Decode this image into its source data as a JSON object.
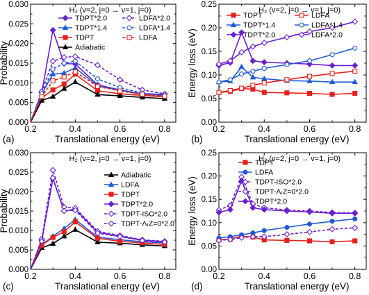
{
  "chart_data": [
    {
      "type": "line",
      "panel_label": "(a)",
      "title": "H₂ (v=2, j=0 → v=1, j=0)",
      "xlabel": "Translational energy (eV)",
      "ylabel": "Probability",
      "xlim": [
        0.2,
        0.85
      ],
      "ylim": [
        0,
        0.03
      ],
      "xticks": [
        "0.2",
        "0.4",
        "0.6",
        "0.8"
      ],
      "yticks": [
        "0.000",
        "0.005",
        "0.010",
        "0.015",
        "0.020",
        "0.025",
        "0.030"
      ],
      "x": [
        0.2,
        0.25,
        0.3,
        0.35,
        0.4,
        0.5,
        0.6,
        0.7,
        0.8
      ],
      "legend_position": "top-left",
      "series": [
        {
          "name": "TDPT*2.0",
          "color": "#6a1fd1",
          "marker": "diamond",
          "fill": true,
          "dash": false,
          "values": [
            0.0,
            0.0075,
            0.0234,
            0.0149,
            0.0148,
            0.0095,
            0.0082,
            0.0072,
            0.0071
          ]
        },
        {
          "name": "TDPT*1.4",
          "color": "#1f5bd6",
          "marker": "triangle",
          "fill": true,
          "dash": false,
          "values": [
            0.0,
            0.0072,
            0.0122,
            0.0125,
            0.0138,
            0.0092,
            0.0081,
            0.0071,
            0.0068
          ]
        },
        {
          "name": "TDPT",
          "color": "#e8201c",
          "marker": "square",
          "fill": true,
          "dash": false,
          "values": [
            0.0,
            0.0062,
            0.0082,
            0.0097,
            0.0122,
            0.008,
            0.0072,
            0.0068,
            0.0064
          ]
        },
        {
          "name": "Adiabatic",
          "color": "#000000",
          "marker": "triangle",
          "fill": true,
          "dash": false,
          "values": [
            0.0,
            0.0055,
            0.0065,
            0.0085,
            0.0102,
            0.007,
            0.0067,
            0.0063,
            0.006
          ]
        },
        {
          "name": "LDFA*2.0",
          "color": "#6a1fd1",
          "marker": "diamond",
          "fill": false,
          "dash": true,
          "values": [
            0.0,
            0.0078,
            0.0155,
            0.0165,
            0.0167,
            0.0145,
            0.0108,
            0.0082,
            0.0072
          ]
        },
        {
          "name": "LDFA*1.4",
          "color": "#1f5bd6",
          "marker": "circle",
          "fill": false,
          "dash": true,
          "values": [
            0.0,
            0.0072,
            0.0135,
            0.015,
            0.0155,
            0.011,
            0.0088,
            0.0074,
            0.0069
          ]
        },
        {
          "name": "LDFA",
          "color": "#e8201c",
          "marker": "square",
          "fill": false,
          "dash": true,
          "values": [
            0.0,
            0.0065,
            0.0105,
            0.0115,
            0.0128,
            0.0091,
            0.0079,
            0.0071,
            0.0066
          ]
        }
      ]
    },
    {
      "type": "line",
      "panel_label": "(b)",
      "title": "H₂ (v=2, j=0 → v=1, j=0)",
      "xlabel": "Translational energy (eV)",
      "ylabel": "Energy loss (eV)",
      "xlim": [
        0.2,
        0.85
      ],
      "ylim": [
        0,
        0.25
      ],
      "xticks": [
        "0.2",
        "0.4",
        "0.6",
        "0.8"
      ],
      "yticks": [
        "0.00",
        "0.05",
        "0.10",
        "0.15",
        "0.20",
        "0.25"
      ],
      "x": [
        0.2,
        0.25,
        0.3,
        0.35,
        0.4,
        0.5,
        0.6,
        0.7,
        0.8
      ],
      "legend_position": "top",
      "series": [
        {
          "name": "TDPT",
          "color": "#e8201c",
          "marker": "square",
          "fill": true,
          "dash": false,
          "values": [
            0.063,
            0.065,
            0.071,
            0.07,
            0.063,
            0.062,
            0.061,
            0.059,
            0.061
          ]
        },
        {
          "name": "TDPT*1.4",
          "color": "#1f5bd6",
          "marker": "triangle",
          "fill": true,
          "dash": false,
          "values": [
            0.085,
            0.087,
            0.117,
            0.095,
            0.092,
            0.088,
            0.087,
            0.085,
            0.085
          ]
        },
        {
          "name": "TDPT*2.0",
          "color": "#6a1fd1",
          "marker": "diamond",
          "fill": true,
          "dash": false,
          "values": [
            0.12,
            0.126,
            0.19,
            0.13,
            0.127,
            0.125,
            0.123,
            0.12,
            0.12
          ]
        },
        {
          "name": "LDFA",
          "color": "#e8201c",
          "marker": "square",
          "fill": false,
          "dash": false,
          "values": [
            0.063,
            0.067,
            0.072,
            0.078,
            0.083,
            0.09,
            0.097,
            0.103,
            0.108
          ]
        },
        {
          "name": "LDFA*1.4",
          "color": "#1f5bd6",
          "marker": "circle",
          "fill": false,
          "dash": false,
          "values": [
            0.085,
            0.09,
            0.102,
            0.108,
            0.114,
            0.122,
            0.13,
            0.143,
            0.157
          ]
        },
        {
          "name": "LDFA*2.0",
          "color": "#6a1fd1",
          "marker": "diamond",
          "fill": false,
          "dash": false,
          "values": [
            0.123,
            0.13,
            0.148,
            0.16,
            0.168,
            0.18,
            0.192,
            0.2,
            0.213
          ]
        }
      ]
    },
    {
      "type": "line",
      "panel_label": "(c)",
      "title": "H₂ (v=2, j=0 → v=1, j=0)",
      "xlabel": "Translational energy (eV)",
      "ylabel": "Probability",
      "xlim": [
        0.2,
        0.85
      ],
      "ylim": [
        0,
        0.03
      ],
      "xticks": [
        "0.2",
        "0.4",
        "0.6",
        "0.8"
      ],
      "yticks": [
        "0.000",
        "0.005",
        "0.010",
        "0.015",
        "0.020",
        "0.025",
        "0.030"
      ],
      "x": [
        0.2,
        0.25,
        0.3,
        0.35,
        0.4,
        0.5,
        0.6,
        0.7,
        0.8
      ],
      "legend_position": "top-right",
      "series": [
        {
          "name": "Adiabatic",
          "color": "#000000",
          "marker": "triangle",
          "fill": true,
          "dash": false,
          "values": [
            0.0,
            0.0055,
            0.0066,
            0.0085,
            0.0102,
            0.007,
            0.0067,
            0.0063,
            0.006
          ]
        },
        {
          "name": "LDFA",
          "color": "#1f5bd6",
          "marker": "triangle",
          "fill": true,
          "dash": false,
          "values": [
            0.0,
            0.0063,
            0.0085,
            0.0105,
            0.0128,
            0.0083,
            0.0076,
            0.0071,
            0.0068
          ]
        },
        {
          "name": "TDPT",
          "color": "#e8201c",
          "marker": "square",
          "fill": true,
          "dash": false,
          "values": [
            0.0,
            0.0062,
            0.0082,
            0.0097,
            0.0122,
            0.008,
            0.0072,
            0.0068,
            0.0064
          ]
        },
        {
          "name": "TDPT*2.0",
          "color": "#6a1fd1",
          "marker": "diamond",
          "fill": true,
          "dash": false,
          "values": [
            0.0,
            0.0075,
            0.0233,
            0.015,
            0.0155,
            0.0095,
            0.0085,
            0.0075,
            0.0071
          ]
        },
        {
          "name": "TDPT-ISO*2.0",
          "color": "#6a1fd1",
          "marker": "diamond",
          "fill": false,
          "dash": true,
          "values": [
            0.0,
            0.0078,
            0.0255,
            0.016,
            0.0158,
            0.0098,
            0.0087,
            0.0076,
            0.0072
          ]
        },
        {
          "name": "TDPT-ΛᵣZ=0*2.0",
          "color": "#6a1fd1",
          "marker": "diamond",
          "fill": false,
          "dash": true,
          "values": [
            0.0,
            0.0072,
            0.0235,
            0.015,
            0.0152,
            0.0093,
            0.0084,
            0.0074,
            0.007
          ]
        }
      ]
    },
    {
      "type": "line",
      "panel_label": "(d)",
      "title": "H₂ (v=2, j=0 → v=1, j=0)",
      "xlabel": "Translational energy (eV)",
      "ylabel": "Energy loss (eV)",
      "xlim": [
        0.2,
        0.85
      ],
      "ylim": [
        0,
        0.25
      ],
      "xticks": [
        "0.2",
        "0.4",
        "0.6",
        "0.8"
      ],
      "yticks": [
        "0.00",
        "0.05",
        "0.10",
        "0.15",
        "0.20",
        "0.25"
      ],
      "x": [
        0.2,
        0.25,
        0.3,
        0.35,
        0.4,
        0.5,
        0.6,
        0.7,
        0.8
      ],
      "legend_position": "top-left",
      "series": [
        {
          "name": "TDPT",
          "color": "#e8201c",
          "marker": "square",
          "fill": true,
          "dash": false,
          "values": [
            0.063,
            0.065,
            0.071,
            0.069,
            0.063,
            0.062,
            0.061,
            0.059,
            0.061
          ]
        },
        {
          "name": "LDFA",
          "color": "#1f5bd6",
          "marker": "circle",
          "fill": true,
          "dash": false,
          "values": [
            0.067,
            0.07,
            0.074,
            0.078,
            0.083,
            0.09,
            0.097,
            0.103,
            0.108
          ]
        },
        {
          "name": "TDPT-ISO*2.0",
          "color": "#6a1fd1",
          "marker": "diamond",
          "fill": false,
          "dash": true,
          "values": [
            0.127,
            0.137,
            0.198,
            0.14,
            0.132,
            0.127,
            0.125,
            0.122,
            0.121
          ]
        },
        {
          "name": "TDPT-ΛᵣZ=0*2.0",
          "color": "#6a1fd1",
          "marker": "diamond",
          "fill": false,
          "dash": true,
          "values": [
            0.062,
            0.064,
            0.068,
            0.07,
            0.07,
            0.075,
            0.08,
            0.086,
            0.089
          ]
        },
        {
          "name": "TDPT*2.0",
          "color": "#6a1fd1",
          "marker": "diamond",
          "fill": true,
          "dash": false,
          "values": [
            0.122,
            0.128,
            0.19,
            0.132,
            0.128,
            0.125,
            0.123,
            0.12,
            0.12
          ]
        }
      ]
    }
  ]
}
